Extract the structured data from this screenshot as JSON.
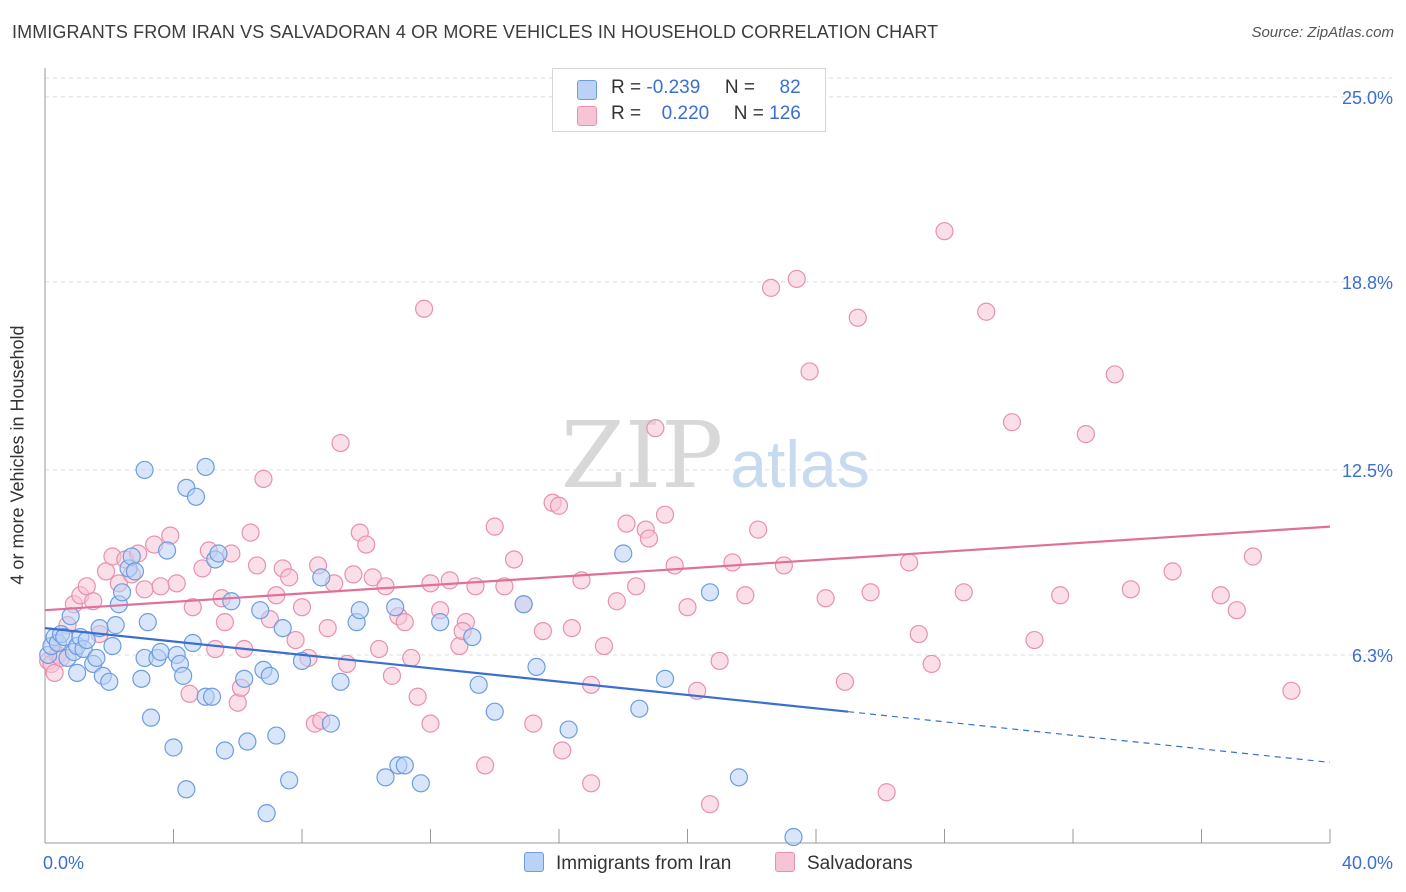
{
  "header": {
    "title": "IMMIGRANTS FROM IRAN VS SALVADORAN 4 OR MORE VEHICLES IN HOUSEHOLD CORRELATION CHART",
    "source": "Source: ZipAtlas.com"
  },
  "watermark": {
    "zip": "ZIP",
    "atlas": "atlas"
  },
  "legend": {
    "rows": [
      {
        "r_label": "R =",
        "r_value": "-0.239",
        "n_label": "N =",
        "n_value": "82",
        "fill": "#b9d2f5",
        "stroke": "#6d9de0"
      },
      {
        "r_label": "R =",
        "r_value": "0.220",
        "n_label": "N =",
        "n_value": "126",
        "fill": "#f7c4d6",
        "stroke": "#e890b0"
      }
    ]
  },
  "bottom_legend": [
    {
      "label": "Immigrants from Iran",
      "fill": "#b9d2f5",
      "stroke": "#6d9de0"
    },
    {
      "label": "Salvadorans",
      "fill": "#f7c4d6",
      "stroke": "#e890b0"
    }
  ],
  "chart_data": {
    "type": "scatter",
    "title": "IMMIGRANTS FROM IRAN VS SALVADORAN 4 OR MORE VEHICLES IN HOUSEHOLD CORRELATION CHART",
    "xlabel": "",
    "ylabel": "4 or more Vehicles in Household",
    "xlim": [
      0,
      40
    ],
    "ylim": [
      0,
      25.9
    ],
    "x_tick_labels": [
      "0.0%",
      "40.0%"
    ],
    "y_ticks": [
      6.3,
      12.5,
      18.8,
      25.0
    ],
    "y_tick_labels": [
      "6.3%",
      "12.5%",
      "18.8%",
      "25.0%"
    ],
    "grid": true,
    "legend_position": "top-center",
    "colors": {
      "iran": "#6d9de0",
      "iran_fill": "#b9d2f5",
      "iran_line": "#3a6fd0",
      "salv": "#e890b0",
      "salv_fill": "#f7c4d6",
      "salv_line": "#e0709a",
      "axis_text": "#3a6fd0"
    },
    "series": [
      {
        "name": "Immigrants from Iran",
        "trend": {
          "x0": 0,
          "y0": 7.2,
          "x1": 25,
          "y1": 4.4,
          "dash_x1": 40,
          "dash_y1": 2.7
        },
        "points": [
          [
            0.1,
            6.3
          ],
          [
            0.2,
            6.6
          ],
          [
            0.3,
            6.9
          ],
          [
            0.4,
            6.7
          ],
          [
            0.5,
            7.0
          ],
          [
            0.6,
            6.9
          ],
          [
            0.7,
            6.2
          ],
          [
            0.8,
            7.6
          ],
          [
            0.9,
            6.4
          ],
          [
            1.0,
            6.6
          ],
          [
            1.0,
            5.7
          ],
          [
            1.1,
            6.9
          ],
          [
            1.2,
            6.5
          ],
          [
            1.3,
            6.8
          ],
          [
            1.5,
            6.0
          ],
          [
            1.6,
            6.2
          ],
          [
            1.7,
            7.2
          ],
          [
            1.8,
            5.6
          ],
          [
            2.0,
            5.4
          ],
          [
            2.1,
            6.6
          ],
          [
            2.2,
            7.3
          ],
          [
            2.3,
            8.0
          ],
          [
            2.4,
            8.4
          ],
          [
            2.6,
            9.2
          ],
          [
            2.7,
            9.6
          ],
          [
            2.8,
            9.1
          ],
          [
            3.0,
            5.5
          ],
          [
            3.1,
            6.2
          ],
          [
            3.2,
            7.4
          ],
          [
            3.3,
            4.2
          ],
          [
            3.5,
            6.2
          ],
          [
            3.6,
            6.4
          ],
          [
            3.8,
            9.8
          ],
          [
            4.0,
            3.2
          ],
          [
            4.1,
            6.3
          ],
          [
            4.2,
            6.0
          ],
          [
            4.3,
            5.6
          ],
          [
            4.4,
            11.9
          ],
          [
            4.6,
            6.7
          ],
          [
            4.7,
            11.6
          ],
          [
            5.0,
            4.9
          ],
          [
            5.2,
            4.9
          ],
          [
            5.3,
            9.5
          ],
          [
            5.4,
            9.7
          ],
          [
            5.6,
            3.1
          ],
          [
            5.8,
            8.1
          ],
          [
            6.2,
            5.5
          ],
          [
            6.3,
            3.4
          ],
          [
            6.7,
            7.8
          ],
          [
            6.8,
            5.8
          ],
          [
            7.0,
            5.6
          ],
          [
            7.2,
            3.6
          ],
          [
            7.4,
            7.2
          ],
          [
            7.6,
            2.1
          ],
          [
            8.0,
            6.1
          ],
          [
            8.6,
            8.9
          ],
          [
            8.9,
            4.0
          ],
          [
            9.2,
            5.4
          ],
          [
            9.7,
            7.4
          ],
          [
            9.8,
            7.8
          ],
          [
            10.6,
            2.2
          ],
          [
            10.9,
            7.9
          ],
          [
            11.0,
            2.6
          ],
          [
            11.2,
            2.6
          ],
          [
            11.7,
            2.0
          ],
          [
            12.3,
            7.4
          ],
          [
            13.3,
            6.9
          ],
          [
            13.5,
            5.3
          ],
          [
            14.0,
            4.4
          ],
          [
            14.9,
            8.0
          ],
          [
            15.3,
            5.9
          ],
          [
            16.3,
            3.8
          ],
          [
            18.0,
            9.7
          ],
          [
            18.5,
            4.5
          ],
          [
            19.3,
            5.5
          ],
          [
            20.7,
            8.4
          ],
          [
            21.6,
            2.2
          ],
          [
            23.3,
            0.2
          ],
          [
            4.4,
            1.8
          ],
          [
            3.1,
            12.5
          ],
          [
            5.0,
            12.6
          ],
          [
            6.9,
            1.0
          ]
        ]
      },
      {
        "name": "Salvadorans",
        "trend": {
          "x0": 0,
          "y0": 7.8,
          "x1": 40,
          "y1": 10.6
        },
        "points": [
          [
            0.1,
            6.1
          ],
          [
            0.2,
            6.0
          ],
          [
            0.3,
            5.7
          ],
          [
            0.4,
            6.3
          ],
          [
            0.5,
            6.2
          ],
          [
            0.7,
            7.3
          ],
          [
            0.9,
            8.0
          ],
          [
            1.1,
            8.3
          ],
          [
            1.3,
            8.6
          ],
          [
            1.5,
            8.1
          ],
          [
            1.7,
            7.0
          ],
          [
            1.9,
            9.1
          ],
          [
            2.1,
            9.6
          ],
          [
            2.3,
            8.7
          ],
          [
            2.5,
            9.5
          ],
          [
            2.7,
            9.0
          ],
          [
            2.9,
            9.7
          ],
          [
            3.1,
            8.5
          ],
          [
            3.4,
            10.0
          ],
          [
            3.6,
            8.6
          ],
          [
            3.9,
            10.3
          ],
          [
            4.1,
            8.7
          ],
          [
            4.5,
            5.0
          ],
          [
            4.6,
            7.9
          ],
          [
            4.9,
            9.2
          ],
          [
            5.1,
            9.8
          ],
          [
            5.3,
            6.5
          ],
          [
            5.5,
            8.2
          ],
          [
            5.6,
            7.4
          ],
          [
            5.8,
            9.7
          ],
          [
            6.0,
            4.7
          ],
          [
            6.2,
            6.5
          ],
          [
            6.4,
            10.4
          ],
          [
            6.6,
            9.3
          ],
          [
            6.8,
            12.2
          ],
          [
            7.0,
            7.5
          ],
          [
            7.2,
            8.3
          ],
          [
            7.4,
            9.2
          ],
          [
            7.6,
            8.9
          ],
          [
            7.8,
            6.8
          ],
          [
            8.0,
            7.9
          ],
          [
            8.2,
            6.2
          ],
          [
            8.4,
            4.0
          ],
          [
            8.6,
            4.1
          ],
          [
            8.8,
            7.2
          ],
          [
            9.0,
            8.7
          ],
          [
            9.2,
            13.4
          ],
          [
            9.4,
            6.0
          ],
          [
            9.6,
            9.0
          ],
          [
            9.8,
            10.4
          ],
          [
            10.0,
            10.0
          ],
          [
            10.2,
            8.9
          ],
          [
            10.4,
            6.5
          ],
          [
            10.6,
            8.6
          ],
          [
            10.8,
            5.6
          ],
          [
            11.0,
            7.6
          ],
          [
            11.2,
            7.4
          ],
          [
            11.4,
            6.2
          ],
          [
            11.6,
            4.9
          ],
          [
            11.8,
            17.9
          ],
          [
            12.0,
            8.7
          ],
          [
            12.3,
            7.8
          ],
          [
            12.6,
            8.8
          ],
          [
            12.9,
            6.6
          ],
          [
            13.1,
            7.4
          ],
          [
            13.4,
            8.6
          ],
          [
            13.7,
            2.6
          ],
          [
            14.0,
            10.6
          ],
          [
            14.3,
            8.6
          ],
          [
            14.6,
            9.5
          ],
          [
            14.9,
            8.0
          ],
          [
            15.2,
            4.0
          ],
          [
            15.5,
            7.1
          ],
          [
            15.8,
            11.4
          ],
          [
            16.1,
            3.1
          ],
          [
            16.4,
            7.2
          ],
          [
            16.7,
            8.8
          ],
          [
            17.0,
            5.3
          ],
          [
            17.4,
            6.6
          ],
          [
            17.8,
            8.1
          ],
          [
            18.1,
            10.7
          ],
          [
            18.4,
            8.6
          ],
          [
            18.7,
            10.5
          ],
          [
            19.0,
            13.9
          ],
          [
            19.3,
            11.0
          ],
          [
            19.6,
            9.3
          ],
          [
            20.0,
            7.9
          ],
          [
            20.3,
            5.1
          ],
          [
            20.7,
            1.3
          ],
          [
            21.0,
            6.1
          ],
          [
            21.4,
            9.4
          ],
          [
            21.8,
            8.3
          ],
          [
            22.2,
            10.5
          ],
          [
            22.6,
            18.6
          ],
          [
            23.0,
            9.3
          ],
          [
            23.4,
            18.9
          ],
          [
            23.8,
            15.8
          ],
          [
            24.3,
            8.2
          ],
          [
            24.9,
            5.4
          ],
          [
            25.3,
            17.6
          ],
          [
            25.7,
            8.4
          ],
          [
            26.2,
            1.7
          ],
          [
            26.9,
            9.4
          ],
          [
            27.2,
            7.0
          ],
          [
            27.6,
            6.0
          ],
          [
            28.0,
            20.5
          ],
          [
            28.6,
            8.4
          ],
          [
            29.3,
            17.8
          ],
          [
            30.1,
            14.1
          ],
          [
            30.8,
            6.8
          ],
          [
            31.6,
            8.3
          ],
          [
            32.4,
            13.7
          ],
          [
            33.3,
            15.7
          ],
          [
            33.8,
            8.5
          ],
          [
            35.1,
            9.1
          ],
          [
            36.6,
            8.3
          ],
          [
            37.1,
            7.8
          ],
          [
            37.6,
            9.6
          ],
          [
            38.8,
            5.1
          ],
          [
            16.0,
            11.3
          ],
          [
            17.0,
            2.0
          ],
          [
            18.8,
            10.2
          ],
          [
            13.0,
            7.1
          ],
          [
            12.0,
            4.0
          ],
          [
            6.1,
            5.2
          ],
          [
            8.5,
            9.3
          ]
        ]
      }
    ]
  }
}
